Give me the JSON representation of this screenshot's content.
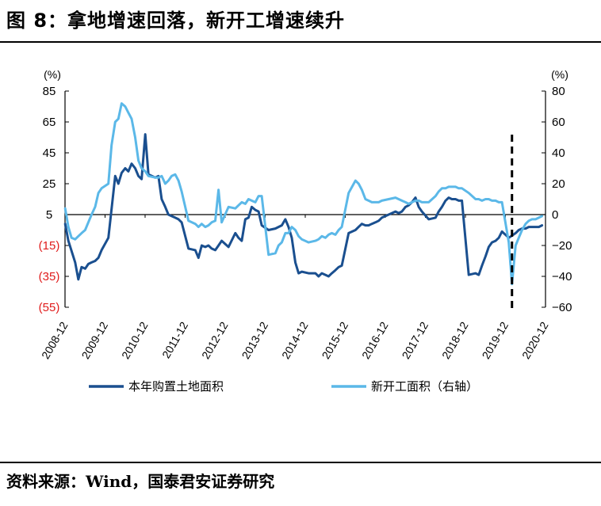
{
  "title": "图 8：拿地增速回落，新开工增速续升",
  "source": "资料来源：Wind，国泰君安证券研究",
  "colors": {
    "series1": "#1a4f8f",
    "series2": "#5bb8e8",
    "negative_label": "#e01b1b",
    "axis": "#000000"
  },
  "chart_data": {
    "type": "line",
    "title": "",
    "left_axis": {
      "unit": "(%)",
      "ylim": [
        -55,
        85
      ],
      "ticks": [
        85,
        65,
        45,
        25,
        5,
        -15,
        -35,
        -55
      ],
      "tick_labels": [
        "85",
        "65",
        "45",
        "25",
        "5",
        "(15)",
        "(35)",
        "(55)"
      ]
    },
    "right_axis": {
      "unit": "(%)",
      "ylim": [
        -60,
        80
      ],
      "ticks": [
        80,
        60,
        40,
        20,
        0,
        -20,
        -40,
        -60
      ],
      "tick_labels": [
        "80",
        "60",
        "40",
        "20",
        "0",
        "−20",
        "−40",
        "−60"
      ]
    },
    "x_tick_labels": [
      "2008-12",
      "2009-12",
      "2010-12",
      "2011-12",
      "2012-12",
      "2013-12",
      "2014-12",
      "2015-12",
      "2016-12",
      "2017-12",
      "2018-12",
      "2019-12",
      "2020-12"
    ],
    "x_range": [
      2008.917,
      2020.917
    ],
    "vertical_marker": {
      "x": 2020.08,
      "style": "dashed"
    },
    "legend": {
      "position": "bottom"
    },
    "series": [
      {
        "name": "本年购置土地面积",
        "axis": "left",
        "x": [
          2008.92,
          2009.0,
          2009.17,
          2009.25,
          2009.33,
          2009.42,
          2009.5,
          2009.58,
          2009.67,
          2009.75,
          2009.83,
          2010.0,
          2010.17,
          2010.25,
          2010.33,
          2010.42,
          2010.5,
          2010.58,
          2010.67,
          2010.75,
          2010.83,
          2010.92,
          2011.0,
          2011.17,
          2011.25,
          2011.33,
          2011.42,
          2011.5,
          2011.58,
          2011.67,
          2011.75,
          2011.83,
          2012.0,
          2012.17,
          2012.25,
          2012.33,
          2012.42,
          2012.5,
          2012.58,
          2012.67,
          2012.75,
          2012.83,
          2013.0,
          2013.17,
          2013.25,
          2013.33,
          2013.42,
          2013.5,
          2013.58,
          2013.67,
          2013.75,
          2013.83,
          2014.0,
          2014.17,
          2014.25,
          2014.33,
          2014.42,
          2014.5,
          2014.58,
          2014.67,
          2014.75,
          2014.83,
          2015.0,
          2015.17,
          2015.25,
          2015.33,
          2015.42,
          2015.5,
          2015.58,
          2015.67,
          2015.75,
          2015.83,
          2016.0,
          2016.17,
          2016.25,
          2016.33,
          2016.42,
          2016.5,
          2016.58,
          2016.67,
          2016.75,
          2016.83,
          2017.0,
          2017.17,
          2017.25,
          2017.33,
          2017.42,
          2017.5,
          2017.58,
          2017.67,
          2017.75,
          2017.83,
          2018.0,
          2018.17,
          2018.25,
          2018.33,
          2018.42,
          2018.5,
          2018.58,
          2018.67,
          2018.75,
          2018.83,
          2019.0,
          2019.17,
          2019.25,
          2019.33,
          2019.42,
          2019.5,
          2019.58,
          2019.67,
          2019.75,
          2019.83,
          2020.0,
          2020.17,
          2020.25,
          2020.33,
          2020.42,
          2020.5,
          2020.58,
          2020.67,
          2020.75,
          2020.83
        ],
        "values": [
          -1,
          -12,
          -26,
          -37,
          -29,
          -30,
          -27,
          -26,
          -25,
          -23,
          -18,
          -10,
          30,
          25,
          32,
          35,
          33,
          38,
          35,
          30,
          28,
          57,
          31,
          29,
          30,
          15,
          10,
          5,
          4,
          3,
          2,
          0,
          -17,
          -18,
          -23,
          -15,
          -16,
          -15,
          -17,
          -18,
          -15,
          -12,
          -16,
          -7,
          -10,
          -12,
          2,
          3,
          10,
          8,
          7,
          -2,
          -5,
          -4,
          -3,
          -2,
          2,
          -3,
          -10,
          -26,
          -33,
          -32,
          -33,
          -33,
          -35,
          -33,
          -34,
          -35,
          -33,
          -31,
          -29,
          -28,
          -7,
          -5,
          -3,
          -1,
          -2,
          -2,
          -1,
          0,
          1,
          3,
          5,
          7,
          6,
          7,
          10,
          11,
          13,
          16,
          10,
          7,
          2,
          3,
          7,
          10,
          14,
          16,
          15,
          15,
          14,
          14,
          -34,
          -33,
          -34,
          -28,
          -22,
          -16,
          -13,
          -12,
          -10,
          -6,
          -10,
          -7,
          -5,
          -4,
          -4,
          -3,
          -3,
          -3,
          -3,
          -2
        ]
      },
      {
        "name": "新开工面积（右轴）",
        "axis": "right",
        "x": [
          2008.92,
          2009.0,
          2009.08,
          2009.17,
          2009.25,
          2009.33,
          2009.42,
          2009.5,
          2009.58,
          2009.67,
          2009.75,
          2009.83,
          2010.0,
          2010.08,
          2010.17,
          2010.25,
          2010.33,
          2010.42,
          2010.5,
          2010.58,
          2010.67,
          2010.75,
          2010.83,
          2010.92,
          2011.0,
          2011.17,
          2011.25,
          2011.33,
          2011.42,
          2011.5,
          2011.58,
          2011.67,
          2011.75,
          2011.83,
          2012.0,
          2012.17,
          2012.25,
          2012.33,
          2012.42,
          2012.5,
          2012.58,
          2012.67,
          2012.75,
          2012.83,
          2013.0,
          2013.17,
          2013.25,
          2013.33,
          2013.42,
          2013.5,
          2013.58,
          2013.67,
          2013.75,
          2013.83,
          2014.0,
          2014.17,
          2014.25,
          2014.33,
          2014.42,
          2014.5,
          2014.58,
          2014.67,
          2014.75,
          2014.83,
          2015.0,
          2015.17,
          2015.25,
          2015.33,
          2015.42,
          2015.5,
          2015.58,
          2015.67,
          2015.75,
          2015.83,
          2016.0,
          2016.17,
          2016.25,
          2016.33,
          2016.42,
          2016.5,
          2016.58,
          2016.67,
          2016.75,
          2016.83,
          2017.0,
          2017.17,
          2017.25,
          2017.33,
          2017.42,
          2017.5,
          2017.58,
          2017.67,
          2017.75,
          2017.83,
          2018.0,
          2018.17,
          2018.25,
          2018.33,
          2018.42,
          2018.5,
          2018.58,
          2018.67,
          2018.75,
          2018.83,
          2019.0,
          2019.17,
          2019.25,
          2019.33,
          2019.42,
          2019.5,
          2019.58,
          2019.67,
          2019.75,
          2019.83,
          2020.0,
          2020.08,
          2020.17,
          2020.25,
          2020.33,
          2020.42,
          2020.5,
          2020.58,
          2020.67,
          2020.75,
          2020.83
        ],
        "values": [
          4,
          -8,
          -15,
          -16,
          -14,
          -12,
          -10,
          -5,
          0,
          5,
          14,
          17,
          20,
          45,
          60,
          62,
          72,
          70,
          66,
          62,
          50,
          35,
          30,
          28,
          25,
          24,
          24,
          25,
          20,
          22,
          25,
          26,
          22,
          15,
          -4,
          -6,
          -8,
          -6,
          -8,
          -7,
          -5,
          -4,
          16,
          -5,
          5,
          4,
          6,
          8,
          7,
          10,
          9,
          8,
          12,
          12,
          -26,
          -25,
          -20,
          -18,
          -12,
          -12,
          -8,
          -10,
          -14,
          -16,
          -18,
          -17,
          -16,
          -14,
          -15,
          -13,
          -12,
          -13,
          -10,
          -8,
          14,
          22,
          20,
          16,
          10,
          9,
          8,
          8,
          8,
          9,
          10,
          11,
          10,
          9,
          8,
          7,
          8,
          9,
          9,
          8,
          8,
          12,
          15,
          17,
          17,
          18,
          18,
          18,
          17,
          17,
          14,
          10,
          10,
          9,
          10,
          10,
          9,
          9,
          8,
          8,
          -18,
          -45,
          -20,
          -15,
          -10,
          -6,
          -4,
          -3,
          -3,
          -2,
          -1
        ]
      }
    ]
  }
}
